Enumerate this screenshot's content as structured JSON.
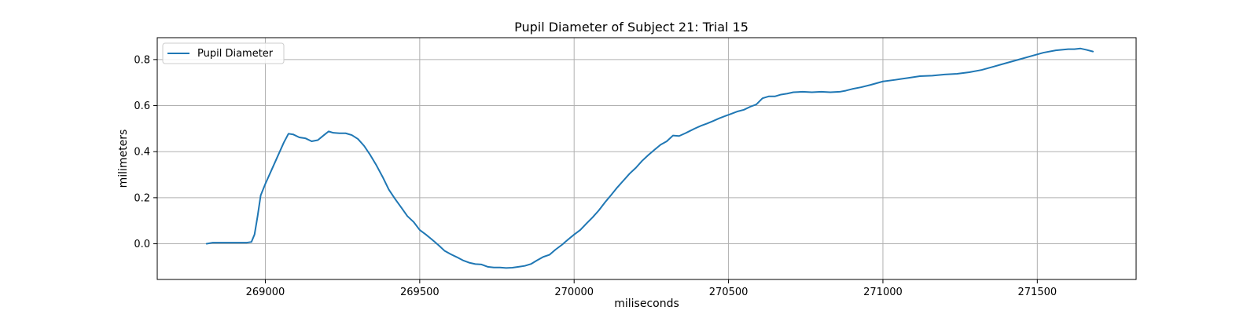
{
  "chart_data": {
    "type": "line",
    "title": "Pupil Diameter of Subject 21: Trial 15",
    "xlabel": "miliseconds",
    "ylabel": "milimeters",
    "xlim": [
      268650,
      271820
    ],
    "ylim": [
      -0.155,
      0.895
    ],
    "xticks": [
      269000,
      269500,
      270000,
      270500,
      271000,
      271500
    ],
    "yticks": [
      0.0,
      0.2,
      0.4,
      0.6,
      0.8
    ],
    "ytick_labels": [
      "0.0",
      "0.2",
      "0.4",
      "0.6",
      "0.8"
    ],
    "grid": true,
    "legend_position": "top-left",
    "color": "#1f77b4",
    "series": [
      {
        "name": "Pupil Diameter",
        "x": [
          268810,
          268830,
          268860,
          268900,
          268940,
          268955,
          268965,
          268975,
          268985,
          269000,
          269020,
          269040,
          269060,
          269075,
          269090,
          269110,
          269130,
          269150,
          269170,
          269190,
          269205,
          269220,
          269240,
          269260,
          269280,
          269300,
          269320,
          269340,
          269360,
          269380,
          269400,
          269420,
          269440,
          269460,
          269480,
          269500,
          269520,
          269540,
          269560,
          269580,
          269600,
          269620,
          269640,
          269660,
          269680,
          269700,
          269720,
          269740,
          269760,
          269780,
          269800,
          269820,
          269840,
          269860,
          269880,
          269900,
          269920,
          269940,
          269960,
          269980,
          270000,
          270020,
          270040,
          270060,
          270080,
          270100,
          270120,
          270140,
          270160,
          270180,
          270200,
          270220,
          270240,
          270260,
          270280,
          270300,
          270320,
          270340,
          270360,
          270375,
          270390,
          270410,
          270430,
          270450,
          270470,
          270490,
          270510,
          270530,
          270550,
          270570,
          270590,
          270610,
          270630,
          270650,
          270670,
          270690,
          270710,
          270740,
          270770,
          270800,
          270830,
          270860,
          270880,
          270900,
          270930,
          270960,
          271000,
          271040,
          271080,
          271120,
          271160,
          271200,
          271240,
          271280,
          271320,
          271360,
          271400,
          271440,
          271480,
          271520,
          271560,
          271600,
          271620,
          271640,
          271660,
          271680
        ],
        "y": [
          0.0,
          0.005,
          0.005,
          0.005,
          0.005,
          0.008,
          0.04,
          0.12,
          0.21,
          0.26,
          0.32,
          0.38,
          0.44,
          0.478,
          0.475,
          0.462,
          0.458,
          0.445,
          0.45,
          0.472,
          0.488,
          0.482,
          0.48,
          0.48,
          0.472,
          0.455,
          0.425,
          0.385,
          0.34,
          0.29,
          0.235,
          0.195,
          0.158,
          0.12,
          0.095,
          0.06,
          0.04,
          0.018,
          -0.005,
          -0.03,
          -0.045,
          -0.058,
          -0.072,
          -0.082,
          -0.088,
          -0.09,
          -0.1,
          -0.103,
          -0.103,
          -0.105,
          -0.104,
          -0.1,
          -0.096,
          -0.088,
          -0.072,
          -0.057,
          -0.048,
          -0.025,
          -0.005,
          0.018,
          0.04,
          0.06,
          0.088,
          0.115,
          0.145,
          0.18,
          0.212,
          0.245,
          0.275,
          0.305,
          0.33,
          0.36,
          0.385,
          0.408,
          0.43,
          0.445,
          0.47,
          0.468,
          0.48,
          0.49,
          0.5,
          0.512,
          0.522,
          0.533,
          0.545,
          0.555,
          0.565,
          0.575,
          0.582,
          0.595,
          0.605,
          0.632,
          0.64,
          0.64,
          0.648,
          0.652,
          0.658,
          0.66,
          0.658,
          0.66,
          0.658,
          0.66,
          0.665,
          0.672,
          0.68,
          0.69,
          0.705,
          0.712,
          0.72,
          0.728,
          0.73,
          0.735,
          0.738,
          0.745,
          0.755,
          0.77,
          0.785,
          0.8,
          0.815,
          0.83,
          0.84,
          0.845,
          0.845,
          0.848,
          0.842,
          0.835
        ]
      }
    ]
  }
}
